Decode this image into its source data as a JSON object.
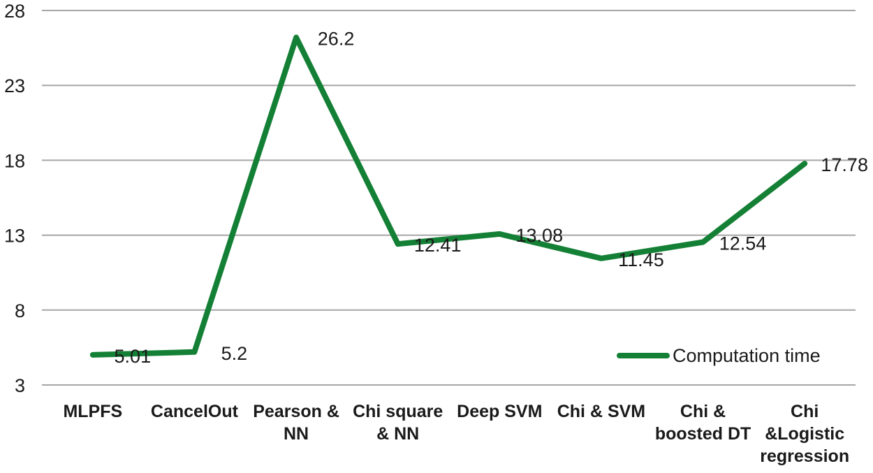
{
  "chart_data": {
    "type": "line",
    "title": "",
    "xlabel": "",
    "ylabel": "",
    "categories": [
      "MLPFS",
      "CancelOut",
      "Pearson &\nNN",
      "Chi square\n& NN",
      "Deep SVM",
      "Chi & SVM",
      "Chi &\nboosted DT",
      "Chi\n&Logistic\nregression"
    ],
    "series": [
      {
        "name": "Computation time",
        "values": [
          5.01,
          5.2,
          26.2,
          12.41,
          13.08,
          11.45,
          12.54,
          17.78
        ]
      }
    ],
    "data_labels": [
      "5.01",
      "5.2",
      "26.2",
      "12.41",
      "13.08",
      "11.45",
      "12.54",
      "17.78"
    ],
    "y_ticks": [
      3,
      8,
      13,
      18,
      23,
      28
    ],
    "ylim": [
      3,
      28
    ],
    "grid": "horizontal-only",
    "legend_position": "inside-bottom-right",
    "colors": {
      "line": "#148035",
      "gridline": "#a6a6a6",
      "text": "#1a1a1a",
      "background": "#ffffff"
    }
  }
}
